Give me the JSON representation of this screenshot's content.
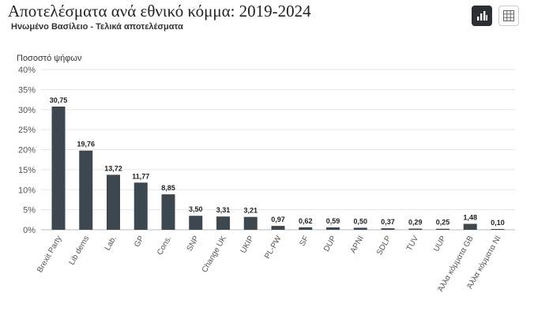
{
  "header": {
    "title": "Αποτελέσματα ανά εθνικό κόμμα: 2019-2024",
    "subtitle": "Ηνωμένο Βασίλειο - Τελικά αποτελέσματα"
  },
  "toolbar": {
    "chart_view_icon": "bar-chart-icon",
    "table_view_icon": "table-grid-icon",
    "active": "chart",
    "colors": {
      "active_bg": "#2b2f33",
      "icon_active": "#ffffff",
      "icon_inactive": "#666666"
    }
  },
  "chart_data": {
    "type": "bar",
    "ylabel": "Ποσοστό ψήφων",
    "ylim": [
      0,
      40
    ],
    "yticks": [
      "0%",
      "5%",
      "10%",
      "15%",
      "20%",
      "25%",
      "30%",
      "35%",
      "40%"
    ],
    "grid": true,
    "bar_color": "#3d4750",
    "categories": [
      "Brexit Party",
      "Lib dems",
      "Lab.",
      "GP",
      "Cons.",
      "SNP",
      "Change UK",
      "UKIP",
      "PL-PW",
      "SF",
      "DUP",
      "APNI",
      "SDLP",
      "TUV",
      "UUP",
      "Άλλα κόμματα GB",
      "Άλλα κόμματα NI"
    ],
    "values": [
      30.75,
      19.76,
      13.72,
      11.77,
      8.85,
      3.5,
      3.31,
      3.21,
      0.97,
      0.62,
      0.59,
      0.5,
      0.37,
      0.29,
      0.25,
      1.48,
      0.1
    ],
    "value_labels": [
      "30,75",
      "19,76",
      "13,72",
      "11,77",
      "8,85",
      "3,50",
      "3,31",
      "3,21",
      "0,97",
      "0,62",
      "0,59",
      "0,50",
      "0,37",
      "0,29",
      "0,25",
      "1,48",
      "0,10"
    ]
  }
}
